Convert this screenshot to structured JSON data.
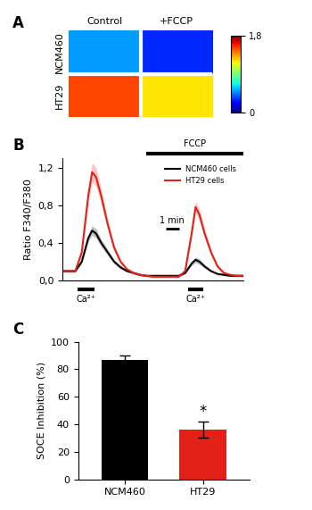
{
  "chart_data": [
    {
      "type": "heatmap",
      "panel": "A",
      "rows": [
        "NCM460",
        "HT29"
      ],
      "columns": [
        "Control",
        "+FCCP"
      ],
      "cells": [
        [
          0.5,
          0.3
        ],
        [
          1.5,
          1.2
        ]
      ],
      "colorbar_range": [
        0,
        1.8
      ],
      "colorbar_ticks": [
        0,
        {
          "value": 1.8,
          "label": "1,8"
        }
      ]
    },
    {
      "type": "line",
      "panel": "B",
      "y_label": "Ratio F340/F380",
      "x": [
        0,
        0.5,
        1,
        1.5,
        2,
        2.3,
        2.6,
        3,
        3.5,
        4,
        4.5,
        5,
        5.5,
        6,
        6.5,
        7,
        7.5,
        8,
        8.5,
        9,
        9.5,
        10,
        10.3,
        10.6,
        11,
        11.5,
        12,
        12.5,
        13,
        13.5,
        14
      ],
      "series": [
        {
          "name": "NCM460 cells",
          "color": "#000000",
          "values": [
            0.1,
            0.1,
            0.1,
            0.2,
            0.45,
            0.53,
            0.5,
            0.4,
            0.3,
            0.2,
            0.14,
            0.1,
            0.08,
            0.06,
            0.05,
            0.05,
            0.05,
            0.05,
            0.05,
            0.05,
            0.08,
            0.18,
            0.22,
            0.2,
            0.15,
            0.1,
            0.07,
            0.06,
            0.05,
            0.05,
            0.05
          ],
          "errors": [
            0.01,
            0.01,
            0.01,
            0.02,
            0.04,
            0.05,
            0.05,
            0.04,
            0.03,
            0.02,
            0.02,
            0.01,
            0.01,
            0.01,
            0.01,
            0.01,
            0.01,
            0.01,
            0.01,
            0.01,
            0.01,
            0.02,
            0.03,
            0.03,
            0.02,
            0.01,
            0.01,
            0.01,
            0.01,
            0.01,
            0.01
          ]
        },
        {
          "name": "HT29 cells",
          "color": "#e32119",
          "values": [
            0.1,
            0.1,
            0.1,
            0.3,
            0.9,
            1.15,
            1.1,
            0.9,
            0.6,
            0.35,
            0.2,
            0.12,
            0.08,
            0.06,
            0.05,
            0.04,
            0.04,
            0.04,
            0.04,
            0.04,
            0.1,
            0.5,
            0.78,
            0.7,
            0.5,
            0.3,
            0.15,
            0.08,
            0.06,
            0.05,
            0.05
          ],
          "errors": [
            0.01,
            0.01,
            0.01,
            0.04,
            0.08,
            0.1,
            0.1,
            0.08,
            0.05,
            0.03,
            0.02,
            0.01,
            0.01,
            0.01,
            0.01,
            0.01,
            0.01,
            0.01,
            0.01,
            0.01,
            0.02,
            0.05,
            0.06,
            0.06,
            0.05,
            0.03,
            0.02,
            0.01,
            0.01,
            0.01,
            0.01
          ]
        }
      ],
      "xlim": [
        0,
        14
      ],
      "xticks": [],
      "ylim": [
        0,
        1.3
      ],
      "yticks": [
        {
          "value": 0,
          "label": "0,0"
        },
        {
          "value": 0.4,
          "label": "0,4"
        },
        {
          "value": 0.8,
          "label": "0,8"
        },
        {
          "value": 1.2,
          "label": "1,2"
        }
      ],
      "tick_labels": "y",
      "legend": "upper right",
      "additions": [
        {
          "label": "Ca²⁺",
          "start": 1.2,
          "end": 2.5
        },
        {
          "label": "Ca²⁺",
          "start": 9.7,
          "end": 10.9
        }
      ],
      "treatment": {
        "label": "FCCP",
        "start": 6.5,
        "end": 14
      },
      "scale_bar": {
        "label": "1 min",
        "start": 8,
        "end": 9,
        "y": 0.55
      }
    },
    {
      "type": "bar",
      "panel": "C",
      "y_label": "SOCE Inhibition (%)",
      "categories": [
        "NCM460",
        "HT29"
      ],
      "values": [
        87,
        36
      ],
      "errors": [
        3,
        6
      ],
      "colors": [
        "#000000",
        "#e32119"
      ],
      "ylim": [
        0,
        100
      ],
      "yticks": [
        0,
        20,
        40,
        60,
        80,
        100
      ],
      "annotations": [
        {
          "text": "*",
          "category": "HT29"
        }
      ]
    }
  ]
}
